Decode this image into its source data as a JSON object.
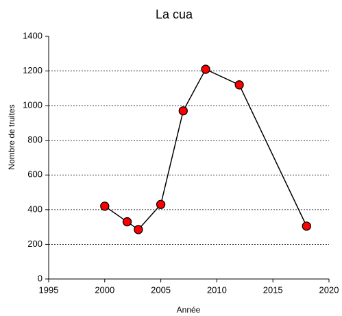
{
  "chart_data": {
    "type": "line",
    "title": "La cua",
    "x_label": "Année",
    "y_label": "Nombre de truites",
    "x": [
      2000,
      2002,
      2003,
      2005,
      2007,
      2009,
      2012,
      2018
    ],
    "series": [
      {
        "color": "#ff0000",
        "line_color": "#000000",
        "values": [
          420,
          330,
          285,
          430,
          970,
          1210,
          1120,
          305
        ]
      }
    ],
    "xlim": [
      1995,
      2020
    ],
    "xticks": [
      1995,
      2000,
      2005,
      2010,
      2015,
      2020
    ],
    "ylim": [
      0,
      1400
    ],
    "yticks": [
      0,
      200,
      400,
      600,
      800,
      1000,
      1200,
      1400
    ],
    "grid": true
  }
}
